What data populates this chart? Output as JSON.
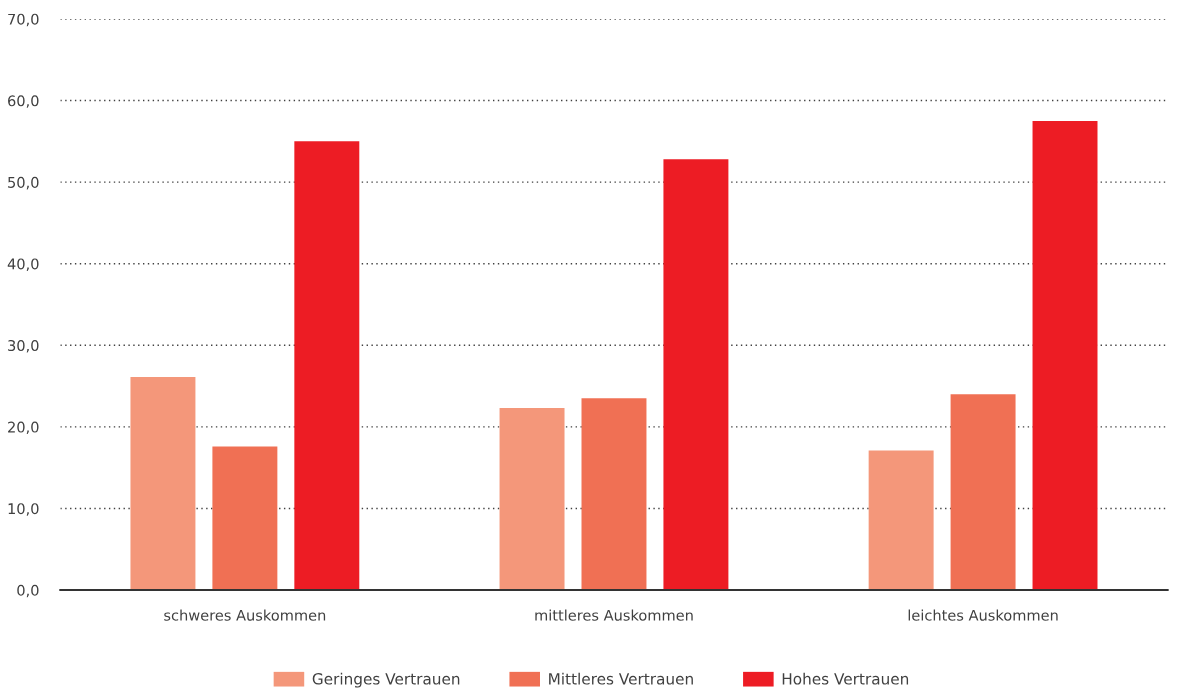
{
  "chart_data": {
    "type": "bar",
    "categories": [
      "schweres Auskommen",
      "mittleres Auskommen",
      "leichtes Auskommen"
    ],
    "series": [
      {
        "name": "Geringes Vertrauen",
        "color": "#f4977a",
        "values": [
          26.1,
          22.3,
          17.1
        ]
      },
      {
        "name": "Mittleres Vertrauen",
        "color": "#f07054",
        "values": [
          17.6,
          23.5,
          24.0
        ]
      },
      {
        "name": "Hohes Vertrauen",
        "color": "#ed1c24",
        "values": [
          55.0,
          52.8,
          57.5
        ]
      }
    ],
    "ylim": [
      0,
      70
    ],
    "yticks": [
      {
        "value": 0,
        "label": "0,0"
      },
      {
        "value": 10,
        "label": "10,0"
      },
      {
        "value": 20,
        "label": "20,0"
      },
      {
        "value": 30,
        "label": "30,0"
      },
      {
        "value": 40,
        "label": "40,0"
      },
      {
        "value": 50,
        "label": "50,0"
      },
      {
        "value": 60,
        "label": "60,0"
      },
      {
        "value": 70,
        "label": "70,0"
      }
    ],
    "grid": "y",
    "legend": "bottom"
  }
}
